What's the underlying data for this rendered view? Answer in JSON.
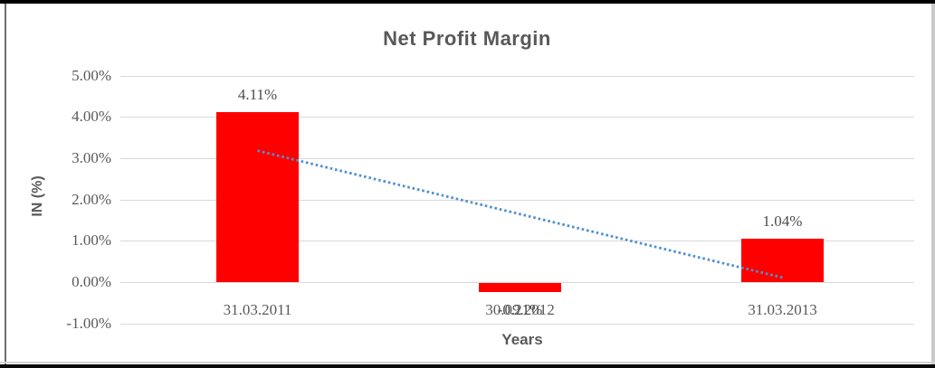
{
  "page": {
    "background": "#ffffff"
  },
  "chart_data": {
    "type": "bar",
    "title": "Net Profit Margin",
    "xlabel": "Years",
    "ylabel": "IN (%)",
    "categories": [
      "31.03.2011",
      "30.09.2012",
      "31.03.2013"
    ],
    "values": [
      4.11,
      -0.21,
      1.04
    ],
    "data_labels": [
      "4.11%",
      "-0.21%",
      "1.04%"
    ],
    "yticks": [
      5,
      4,
      3,
      2,
      1,
      0,
      -1
    ],
    "ytick_labels": [
      "5.00%",
      "4.00%",
      "3.00%",
      "2.00%",
      "1.00%",
      "0.00%",
      "-1.00%"
    ],
    "ylim": [
      -1,
      5
    ],
    "grid": true,
    "legend": false,
    "bar_color": "#ff0000",
    "grid_color": "#d9d9d9",
    "text_color": "#595959",
    "trendline": {
      "type": "linear",
      "style": "dotted",
      "color": "#4f90cd",
      "start_value": 3.18,
      "end_value": 0.11
    }
  }
}
